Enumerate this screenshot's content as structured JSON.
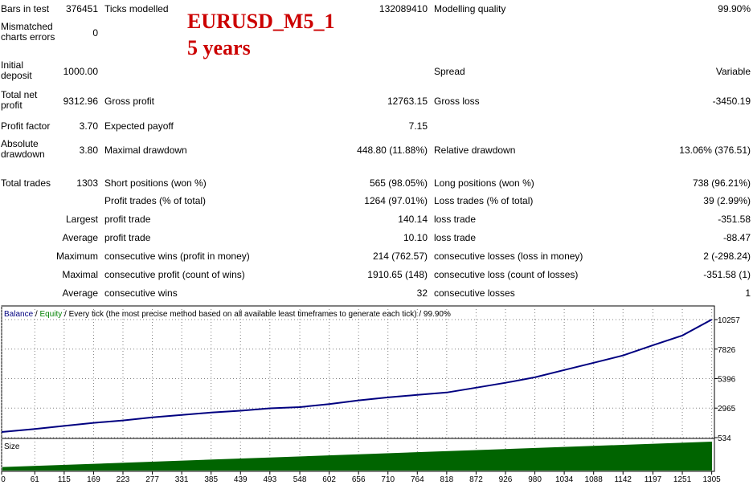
{
  "overlay": {
    "line1": "EURUSD_M5_1",
    "line2": "5 years"
  },
  "report": {
    "bars_label": "Bars in test",
    "bars_value": "376451",
    "ticks_label": "Ticks modelled",
    "ticks_value": "132089410",
    "quality_label": "Modelling quality",
    "quality_value": "99.90%",
    "mismatch_label": "Mismatched charts errors",
    "mismatch_value": "0",
    "deposit_label": "Initial deposit",
    "deposit_value": "1000.00",
    "spread_label": "Spread",
    "spread_value": "Variable",
    "netprofit_label": "Total net profit",
    "netprofit_value": "9312.96",
    "grossprofit_label": "Gross profit",
    "grossprofit_value": "12763.15",
    "grossloss_label": "Gross loss",
    "grossloss_value": "-3450.19",
    "pf_label": "Profit factor",
    "pf_value": "3.70",
    "payoff_label": "Expected payoff",
    "payoff_value": "7.15",
    "absdd_label": "Absolute drawdown",
    "absdd_value": "3.80",
    "maxdd_label": "Maximal drawdown",
    "maxdd_value": "448.80 (11.88%)",
    "reldd_label": "Relative drawdown",
    "reldd_value": "13.06% (376.51)",
    "trades_label": "Total trades",
    "trades_value": "1303",
    "short_label": "Short positions (won %)",
    "short_value": "565 (98.05%)",
    "long_label": "Long positions (won %)",
    "long_value": "738 (96.21%)",
    "ptrades_label": "Profit trades (% of total)",
    "ptrades_value": "1264 (97.01%)",
    "ltrades_label": "Loss trades (% of total)",
    "ltrades_value": "39 (2.99%)",
    "largest_label": "Largest",
    "largest_profit_label": "profit trade",
    "largest_profit_value": "140.14",
    "largest_loss_label": "loss trade",
    "largest_loss_value": "-351.58",
    "average_label": "Average",
    "average_profit_label": "profit trade",
    "average_profit_value": "10.10",
    "average_loss_label": "loss trade",
    "average_loss_value": "-88.47",
    "maximum_label": "Maximum",
    "maxwins_label": "consecutive wins (profit in money)",
    "maxwins_value": "214 (762.57)",
    "maxlosses_label": "consecutive losses (loss in money)",
    "maxlosses_value": "2 (-298.24)",
    "maximal_label": "Maximal",
    "maxprofit_label": "consecutive profit (count of wins)",
    "maxprofit_value": "1910.65 (148)",
    "maxloss_label": "consecutive loss (count of losses)",
    "maxloss_value": "-351.58 (1)",
    "average2_label": "Average",
    "avgwins_label": "consecutive wins",
    "avgwins_value": "32",
    "avglosses_label": "consecutive losses",
    "avglosses_value": "1"
  },
  "chart_data": {
    "type": "line",
    "legend": {
      "balance": "Balance",
      "sep1": " / ",
      "equity": "Equity",
      "rest": " / Every tick (the most precise method based on all available least timeframes to generate each tick) / 99.90%"
    },
    "series": [
      {
        "name": "Balance",
        "color": "#000080",
        "x": [
          0,
          61,
          115,
          169,
          223,
          277,
          331,
          385,
          439,
          493,
          548,
          602,
          656,
          710,
          764,
          818,
          872,
          926,
          980,
          1034,
          1088,
          1142,
          1197,
          1251,
          1305
        ],
        "values": [
          1000,
          1250,
          1500,
          1750,
          1950,
          2200,
          2400,
          2600,
          2750,
          2950,
          3050,
          3300,
          3600,
          3850,
          4050,
          4250,
          4650,
          5050,
          5500,
          6100,
          6700,
          7300,
          8150,
          8950,
          10257
        ]
      },
      {
        "name": "Equity",
        "color": "#008000",
        "x": [],
        "values": []
      }
    ],
    "size_panel": {
      "label": "Size",
      "color": "#006400",
      "x": [
        0,
        1310
      ],
      "values": [
        0.12,
        1.0
      ]
    },
    "yticks": [
      10257,
      7826,
      5396,
      2965,
      534
    ],
    "xticks": [
      0,
      61,
      115,
      169,
      223,
      277,
      331,
      385,
      439,
      493,
      548,
      602,
      656,
      710,
      764,
      818,
      872,
      926,
      980,
      1034,
      1088,
      1142,
      1197,
      1251,
      1305
    ],
    "xlim": [
      0,
      1310
    ],
    "ylim": [
      534,
      10257
    ]
  }
}
